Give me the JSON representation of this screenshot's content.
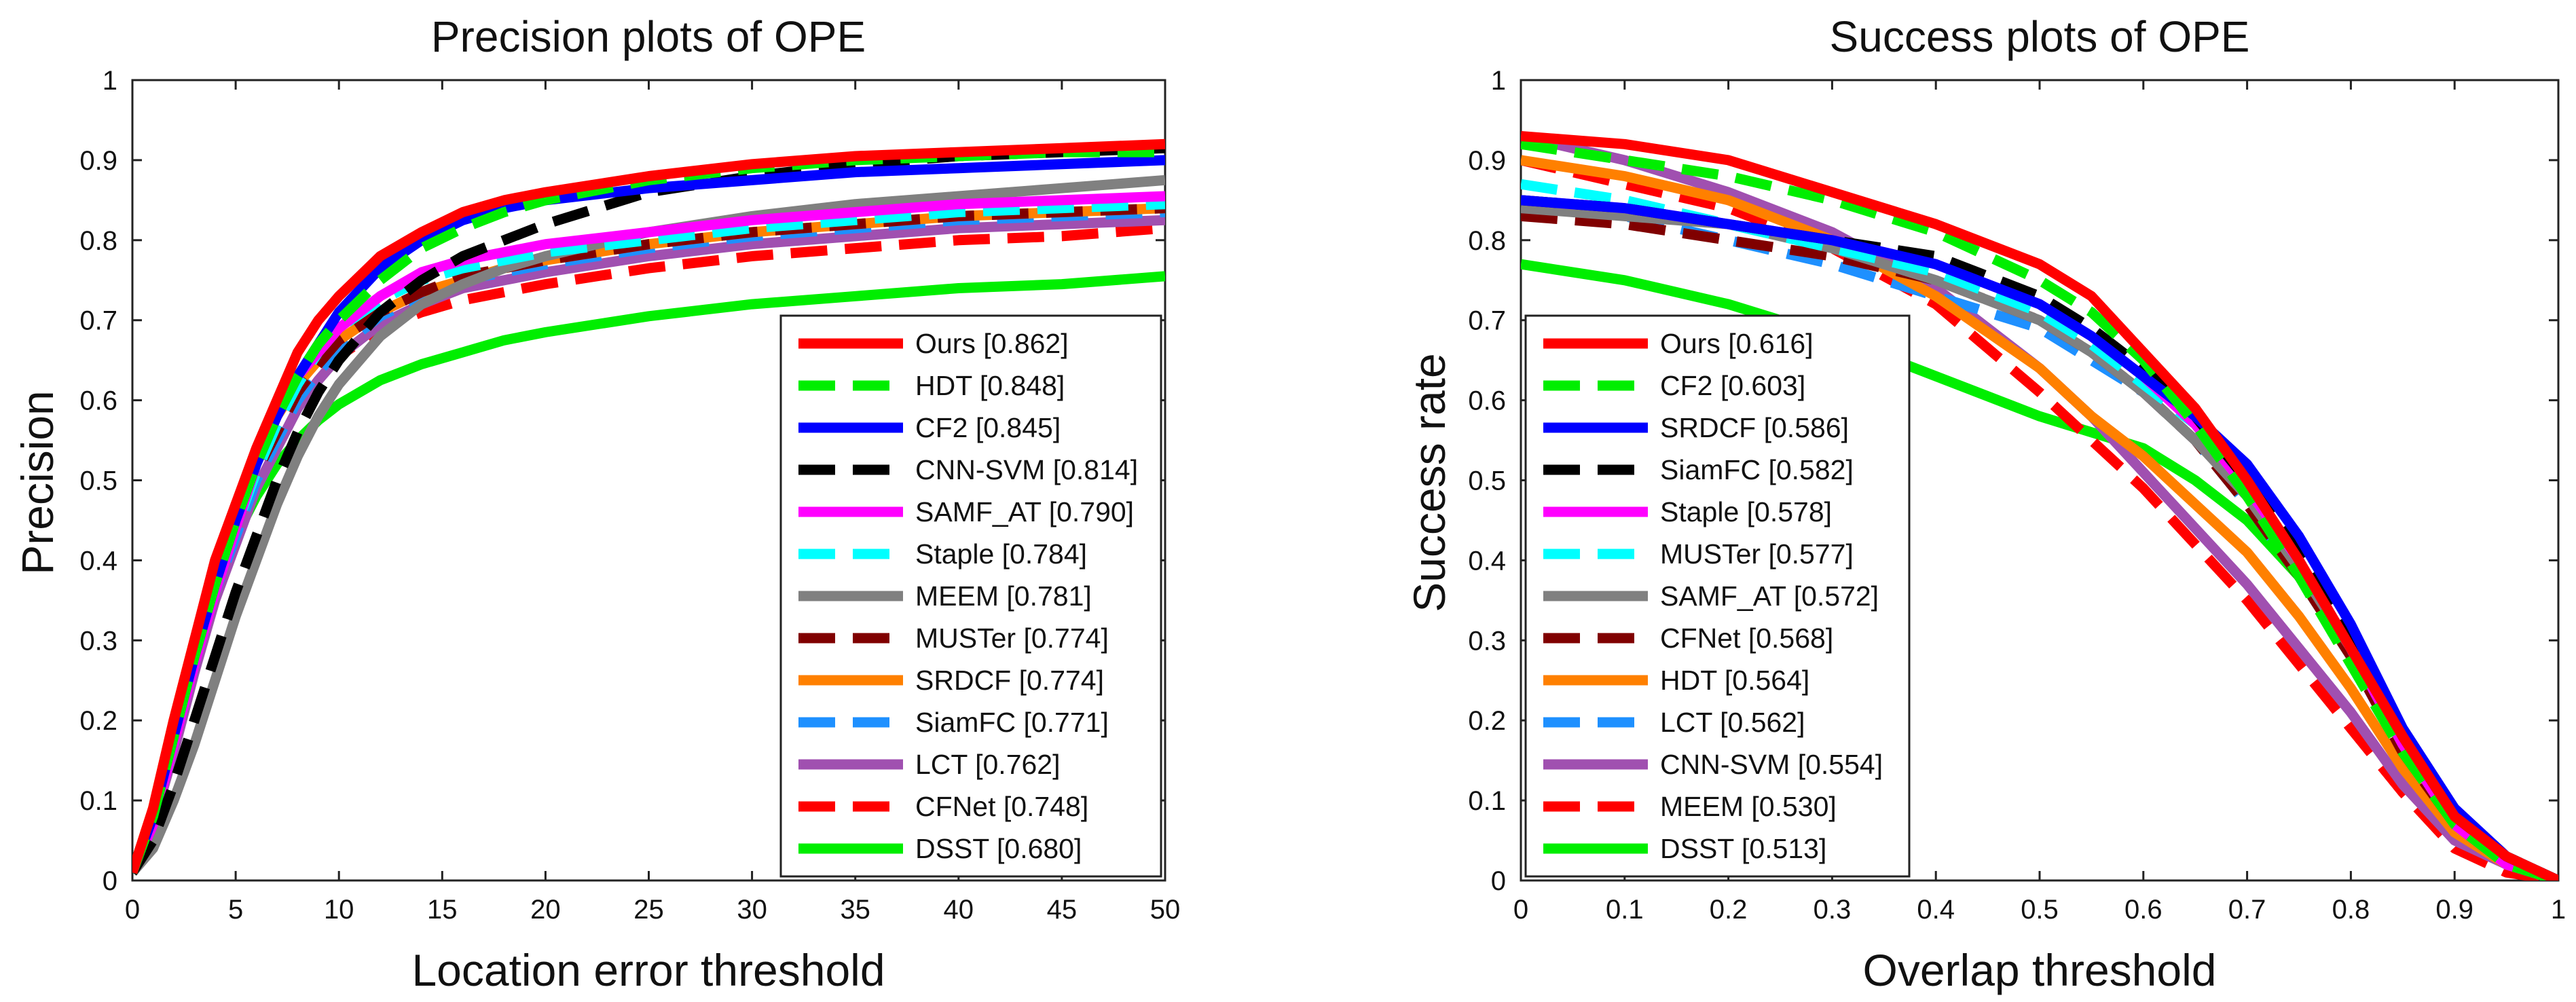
{
  "chart_data": [
    {
      "type": "line",
      "title": "Precision plots of OPE",
      "xlabel": "Location error threshold",
      "ylabel": "Precision",
      "xlim": [
        0,
        50
      ],
      "ylim": [
        0,
        1
      ],
      "xticks": [
        "0",
        "5",
        "10",
        "15",
        "20",
        "25",
        "30",
        "35",
        "40",
        "45",
        "50"
      ],
      "yticks": [
        "0",
        "0.1",
        "0.2",
        "0.3",
        "0.4",
        "0.5",
        "0.6",
        "0.7",
        "0.8",
        "0.9",
        "1"
      ],
      "legend_position": "bottom-right",
      "grid": false,
      "x": [
        0,
        1,
        2,
        3,
        4,
        5,
        6,
        7,
        8,
        9,
        10,
        12,
        14,
        16,
        18,
        20,
        25,
        30,
        35,
        40,
        45,
        50
      ],
      "series": [
        {
          "name": "Ours [0.862]",
          "color": "#ff0000",
          "dash": "solid",
          "values": [
            0.01,
            0.09,
            0.2,
            0.3,
            0.4,
            0.47,
            0.54,
            0.6,
            0.66,
            0.7,
            0.73,
            0.78,
            0.81,
            0.835,
            0.85,
            0.86,
            0.88,
            0.895,
            0.905,
            0.91,
            0.915,
            0.92
          ]
        },
        {
          "name": "HDT [0.848]",
          "color": "#00ee00",
          "dash": "dash",
          "values": [
            0.01,
            0.08,
            0.18,
            0.28,
            0.37,
            0.45,
            0.52,
            0.58,
            0.63,
            0.67,
            0.7,
            0.75,
            0.79,
            0.815,
            0.835,
            0.85,
            0.875,
            0.89,
            0.9,
            0.905,
            0.91,
            0.91
          ]
        },
        {
          "name": "CF2 [0.845]",
          "color": "#0000ff",
          "dash": "solid",
          "values": [
            0.01,
            0.08,
            0.18,
            0.28,
            0.37,
            0.45,
            0.52,
            0.58,
            0.63,
            0.67,
            0.71,
            0.765,
            0.8,
            0.825,
            0.84,
            0.85,
            0.865,
            0.875,
            0.885,
            0.89,
            0.895,
            0.9
          ]
        },
        {
          "name": "CNN-SVM [0.814]",
          "color": "#000000",
          "dash": "dash",
          "values": [
            0.01,
            0.05,
            0.12,
            0.2,
            0.28,
            0.36,
            0.43,
            0.5,
            0.56,
            0.61,
            0.65,
            0.71,
            0.75,
            0.78,
            0.8,
            0.82,
            0.86,
            0.88,
            0.895,
            0.905,
            0.91,
            0.915
          ]
        },
        {
          "name": "SAMF_AT [0.790]",
          "color": "#ff00ff",
          "dash": "solid",
          "values": [
            0.01,
            0.07,
            0.17,
            0.27,
            0.36,
            0.44,
            0.52,
            0.58,
            0.63,
            0.66,
            0.69,
            0.73,
            0.76,
            0.775,
            0.785,
            0.795,
            0.81,
            0.825,
            0.835,
            0.845,
            0.85,
            0.855
          ]
        },
        {
          "name": "Staple [0.784]",
          "color": "#00ffff",
          "dash": "dash",
          "values": [
            0.01,
            0.07,
            0.17,
            0.27,
            0.36,
            0.44,
            0.51,
            0.57,
            0.62,
            0.66,
            0.69,
            0.725,
            0.75,
            0.765,
            0.775,
            0.785,
            0.8,
            0.815,
            0.825,
            0.835,
            0.84,
            0.845
          ]
        },
        {
          "name": "MEEM [0.781]",
          "color": "#808080",
          "dash": "solid",
          "values": [
            0.01,
            0.04,
            0.1,
            0.17,
            0.25,
            0.33,
            0.4,
            0.47,
            0.53,
            0.58,
            0.62,
            0.68,
            0.72,
            0.745,
            0.765,
            0.78,
            0.81,
            0.83,
            0.845,
            0.855,
            0.865,
            0.875
          ]
        },
        {
          "name": "MUSTer [0.774]",
          "color": "#800000",
          "dash": "dash",
          "values": [
            0.01,
            0.07,
            0.17,
            0.27,
            0.36,
            0.44,
            0.51,
            0.56,
            0.61,
            0.645,
            0.675,
            0.71,
            0.735,
            0.755,
            0.765,
            0.775,
            0.795,
            0.81,
            0.82,
            0.83,
            0.835,
            0.84
          ]
        },
        {
          "name": "SRDCF [0.774]",
          "color": "#ff8000",
          "dash": "solid",
          "values": [
            0.01,
            0.09,
            0.2,
            0.3,
            0.39,
            0.47,
            0.53,
            0.58,
            0.62,
            0.65,
            0.675,
            0.71,
            0.735,
            0.75,
            0.765,
            0.775,
            0.795,
            0.81,
            0.82,
            0.83,
            0.835,
            0.84
          ]
        },
        {
          "name": "SiamFC [0.771]",
          "color": "#1e90ff",
          "dash": "dash",
          "values": [
            0.01,
            0.07,
            0.17,
            0.27,
            0.36,
            0.43,
            0.5,
            0.55,
            0.6,
            0.635,
            0.665,
            0.705,
            0.73,
            0.75,
            0.76,
            0.77,
            0.79,
            0.805,
            0.815,
            0.825,
            0.83,
            0.835
          ]
        },
        {
          "name": "LCT [0.762]",
          "color": "#a050b0",
          "dash": "solid",
          "values": [
            0.01,
            0.07,
            0.16,
            0.26,
            0.35,
            0.42,
            0.49,
            0.54,
            0.59,
            0.625,
            0.655,
            0.695,
            0.72,
            0.74,
            0.75,
            0.76,
            0.78,
            0.795,
            0.805,
            0.815,
            0.82,
            0.825
          ]
        },
        {
          "name": "CFNet [0.748]",
          "color": "#ff0000",
          "dash": "dash",
          "values": [
            0.01,
            0.08,
            0.19,
            0.29,
            0.38,
            0.45,
            0.51,
            0.56,
            0.6,
            0.63,
            0.655,
            0.69,
            0.71,
            0.725,
            0.735,
            0.745,
            0.765,
            0.78,
            0.79,
            0.8,
            0.805,
            0.815
          ]
        },
        {
          "name": "DSST [0.680]",
          "color": "#00ee00",
          "dash": "solid",
          "values": [
            0.01,
            0.08,
            0.18,
            0.28,
            0.36,
            0.43,
            0.48,
            0.52,
            0.55,
            0.575,
            0.595,
            0.625,
            0.645,
            0.66,
            0.675,
            0.685,
            0.705,
            0.72,
            0.73,
            0.74,
            0.745,
            0.755
          ]
        }
      ]
    },
    {
      "type": "line",
      "title": "Success plots of OPE",
      "xlabel": "Overlap threshold",
      "ylabel": "Success rate",
      "xlim": [
        0,
        1
      ],
      "ylim": [
        0,
        1
      ],
      "xticks": [
        "0",
        "0.1",
        "0.2",
        "0.3",
        "0.4",
        "0.5",
        "0.6",
        "0.7",
        "0.8",
        "0.9",
        "1"
      ],
      "yticks": [
        "0",
        "0.1",
        "0.2",
        "0.3",
        "0.4",
        "0.5",
        "0.6",
        "0.7",
        "0.8",
        "0.9",
        "1"
      ],
      "legend_position": "bottom-left",
      "grid": false,
      "x": [
        0,
        0.1,
        0.2,
        0.3,
        0.4,
        0.5,
        0.55,
        0.6,
        0.65,
        0.7,
        0.75,
        0.8,
        0.85,
        0.9,
        0.95,
        1.0
      ],
      "series": [
        {
          "name": "Ours [0.616]",
          "color": "#ff0000",
          "dash": "solid",
          "values": [
            0.93,
            0.92,
            0.9,
            0.86,
            0.82,
            0.77,
            0.73,
            0.66,
            0.59,
            0.5,
            0.4,
            0.29,
            0.18,
            0.08,
            0.03,
            0.0
          ]
        },
        {
          "name": "CF2 [0.603]",
          "color": "#00ee00",
          "dash": "dash",
          "values": [
            0.92,
            0.9,
            0.88,
            0.85,
            0.81,
            0.75,
            0.71,
            0.65,
            0.57,
            0.48,
            0.38,
            0.27,
            0.16,
            0.07,
            0.02,
            0.0
          ]
        },
        {
          "name": "SRDCF [0.586]",
          "color": "#0000ff",
          "dash": "solid",
          "values": [
            0.85,
            0.84,
            0.82,
            0.8,
            0.77,
            0.72,
            0.68,
            0.63,
            0.58,
            0.52,
            0.43,
            0.32,
            0.19,
            0.09,
            0.03,
            0.0
          ]
        },
        {
          "name": "SiamFC [0.582]",
          "color": "#000000",
          "dash": "dash",
          "values": [
            0.85,
            0.84,
            0.82,
            0.8,
            0.78,
            0.73,
            0.69,
            0.64,
            0.58,
            0.5,
            0.41,
            0.3,
            0.18,
            0.08,
            0.03,
            0.0
          ]
        },
        {
          "name": "Staple [0.578]",
          "color": "#ff00ff",
          "dash": "solid",
          "values": [
            0.85,
            0.84,
            0.82,
            0.8,
            0.77,
            0.72,
            0.68,
            0.63,
            0.57,
            0.49,
            0.4,
            0.29,
            0.17,
            0.07,
            0.02,
            0.0
          ]
        },
        {
          "name": "MUSTer [0.577]",
          "color": "#00ffff",
          "dash": "dash",
          "values": [
            0.87,
            0.85,
            0.82,
            0.79,
            0.76,
            0.71,
            0.67,
            0.62,
            0.57,
            0.49,
            0.4,
            0.29,
            0.17,
            0.07,
            0.02,
            0.0
          ]
        },
        {
          "name": "SAMF_AT [0.572]",
          "color": "#808080",
          "dash": "solid",
          "values": [
            0.84,
            0.83,
            0.82,
            0.79,
            0.75,
            0.7,
            0.66,
            0.61,
            0.55,
            0.48,
            0.39,
            0.29,
            0.17,
            0.07,
            0.02,
            0.0
          ]
        },
        {
          "name": "CFNet [0.568]",
          "color": "#800000",
          "dash": "dash",
          "values": [
            0.83,
            0.82,
            0.8,
            0.78,
            0.75,
            0.7,
            0.66,
            0.61,
            0.55,
            0.47,
            0.38,
            0.28,
            0.16,
            0.07,
            0.02,
            0.0
          ]
        },
        {
          "name": "HDT [0.564]",
          "color": "#ff8000",
          "dash": "solid",
          "values": [
            0.9,
            0.88,
            0.85,
            0.8,
            0.73,
            0.64,
            0.58,
            0.53,
            0.47,
            0.41,
            0.33,
            0.24,
            0.14,
            0.06,
            0.02,
            0.0
          ]
        },
        {
          "name": "LCT [0.562]",
          "color": "#1e90ff",
          "dash": "dash",
          "values": [
            0.85,
            0.83,
            0.8,
            0.77,
            0.73,
            0.69,
            0.65,
            0.61,
            0.55,
            0.47,
            0.38,
            0.28,
            0.16,
            0.07,
            0.02,
            0.0
          ]
        },
        {
          "name": "CNN-SVM [0.554]",
          "color": "#a050b0",
          "dash": "solid",
          "values": [
            0.93,
            0.9,
            0.86,
            0.81,
            0.74,
            0.64,
            0.58,
            0.51,
            0.44,
            0.37,
            0.29,
            0.21,
            0.12,
            0.05,
            0.02,
            0.0
          ]
        },
        {
          "name": "MEEM [0.530]",
          "color": "#ff0000",
          "dash": "dash",
          "values": [
            0.9,
            0.87,
            0.84,
            0.79,
            0.72,
            0.61,
            0.55,
            0.49,
            0.42,
            0.35,
            0.27,
            0.19,
            0.11,
            0.04,
            0.01,
            0.0
          ]
        },
        {
          "name": "DSST [0.513]",
          "color": "#00ee00",
          "dash": "solid",
          "values": [
            0.77,
            0.75,
            0.72,
            0.68,
            0.63,
            0.58,
            0.56,
            0.54,
            0.5,
            0.45,
            0.38,
            0.28,
            0.17,
            0.08,
            0.03,
            0.0
          ]
        }
      ]
    }
  ]
}
